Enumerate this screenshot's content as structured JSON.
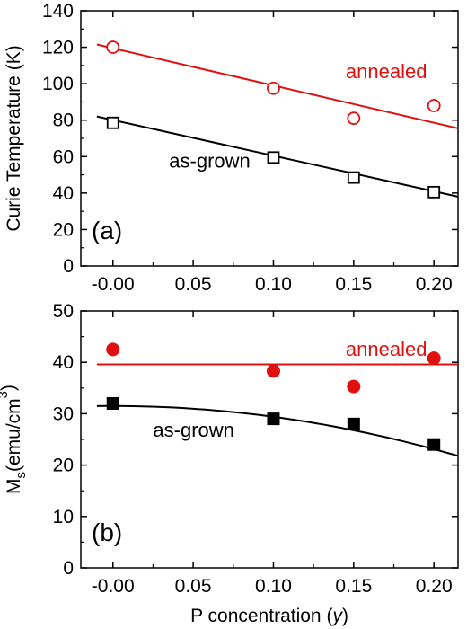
{
  "colors": {
    "annealed": "#e01010",
    "as_grown": "#000000",
    "axis": "#000000"
  },
  "chart_data": [
    {
      "type": "scatter",
      "panel_label": "(a)",
      "ylabel": "Curie Temperature (K)",
      "xlabel": "",
      "xlim": [
        -0.02,
        0.215
      ],
      "ylim": [
        0,
        140
      ],
      "xticks": [
        "-0.00",
        "0.05",
        "0.10",
        "0.15",
        "0.20"
      ],
      "xtick_values": [
        0.0,
        0.05,
        0.1,
        0.15,
        0.2
      ],
      "yticks": [
        "0",
        "20",
        "40",
        "60",
        "80",
        "100",
        "120",
        "140"
      ],
      "ytick_values": [
        0,
        20,
        40,
        60,
        80,
        100,
        120,
        140
      ],
      "series": [
        {
          "label": "annealed",
          "color_key": "annealed",
          "marker": "open-circle",
          "x": [
            0.0,
            0.1,
            0.15,
            0.2
          ],
          "y": [
            120,
            97.5,
            81,
            88
          ],
          "fit": {
            "kind": "linear",
            "x": [
              -0.01,
              0.215
            ],
            "y": [
              121.5,
              75.5
            ]
          },
          "label_at": {
            "x": 0.145,
            "y": 103
          }
        },
        {
          "label": "as-grown",
          "color_key": "as_grown",
          "marker": "open-square",
          "x": [
            0.0,
            0.1,
            0.15,
            0.2
          ],
          "y": [
            78.5,
            59.5,
            48.5,
            40.5
          ],
          "fit": {
            "kind": "linear",
            "x": [
              -0.01,
              0.215
            ],
            "y": [
              82,
              38
            ]
          },
          "label_at": {
            "x": 0.035,
            "y": 54
          }
        }
      ]
    },
    {
      "type": "scatter",
      "panel_label": "(b)",
      "ylabel_main": "M",
      "ylabel_sub": "s",
      "ylabel_rest": "(emu/cm",
      "ylabel_sup": "3",
      "ylabel_end": ")",
      "xlabel_main": "P concentration (",
      "xlabel_italic": "y",
      "xlabel_end": ")",
      "xlim": [
        -0.02,
        0.215
      ],
      "ylim": [
        0,
        50
      ],
      "xticks": [
        "-0.00",
        "0.05",
        "0.10",
        "0.15",
        "0.20"
      ],
      "xtick_values": [
        0.0,
        0.05,
        0.1,
        0.15,
        0.2
      ],
      "yticks": [
        "0",
        "10",
        "20",
        "30",
        "40",
        "50"
      ],
      "ytick_values": [
        0,
        10,
        20,
        30,
        40,
        50
      ],
      "series": [
        {
          "label": "annealed",
          "color_key": "annealed",
          "marker": "filled-circle",
          "x": [
            0.0,
            0.1,
            0.15,
            0.2
          ],
          "y": [
            42.5,
            38.3,
            35.3,
            40.8
          ],
          "fit": {
            "kind": "constant",
            "x": [
              -0.01,
              0.215
            ],
            "y": [
              39.6,
              39.6
            ]
          },
          "label_at": {
            "x": 0.145,
            "y": 41.3
          }
        },
        {
          "label": "as-grown",
          "color_key": "as_grown",
          "marker": "filled-square",
          "x": [
            0.0,
            0.1,
            0.15,
            0.2
          ],
          "y": [
            32.0,
            29.0,
            28.0,
            24.0
          ],
          "fit": {
            "kind": "quadratic",
            "a": 31.5,
            "b": 0,
            "c": -210,
            "x": [
              -0.01,
              0.215
            ]
          },
          "label_at": {
            "x": 0.025,
            "y": 25.5
          }
        }
      ]
    }
  ]
}
